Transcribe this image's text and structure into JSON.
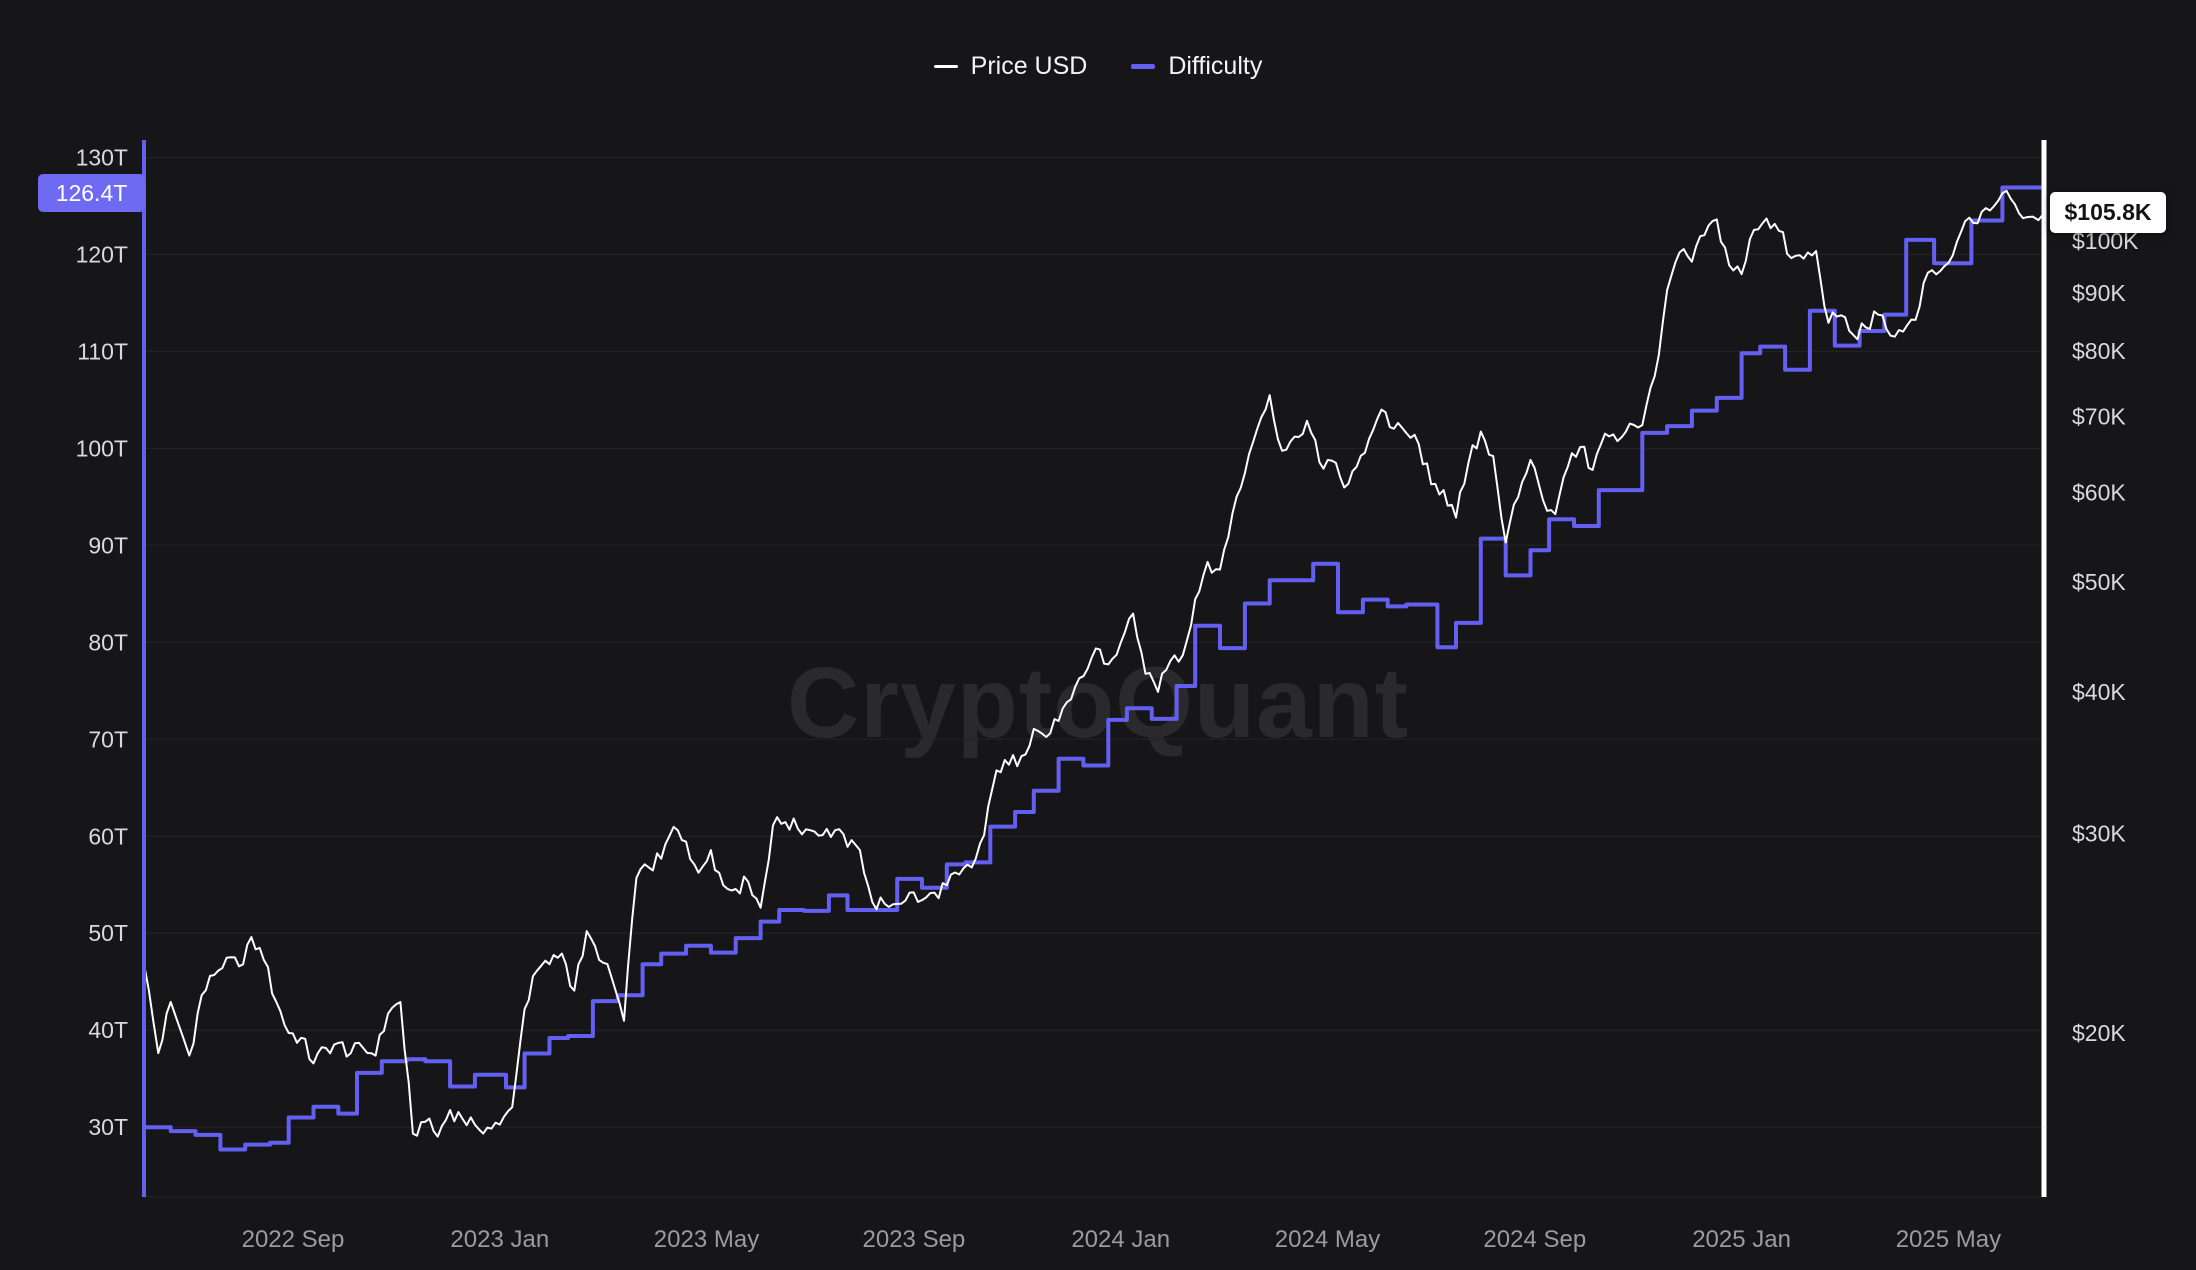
{
  "app": {
    "watermark": "CryptoQuant"
  },
  "legend": {
    "items": [
      {
        "label": "Price USD",
        "color": "#ffffff"
      },
      {
        "label": "Difficulty",
        "color": "#635ff0"
      }
    ]
  },
  "badges": {
    "difficulty": {
      "text": "126.4T",
      "bg": "#6e6bf2",
      "fg": "#ffffff"
    },
    "price": {
      "text": "$105.8K",
      "bg": "#ffffff",
      "fg": "#141417"
    }
  },
  "colors": {
    "background": "#161619",
    "grid": "#242429",
    "axis_left": "#635ff0",
    "axis_right": "#ffffff",
    "tick_label": "#d9d9de",
    "x_label": "#9a9aa2"
  },
  "chart_data": {
    "type": "line",
    "title": "",
    "grid": true,
    "legend_position": "top-center",
    "x_axis": {
      "domain": [
        2022.427,
        2025.487
      ],
      "tick_values": [
        2022.667,
        2023.0,
        2023.333,
        2023.667,
        2024.0,
        2024.333,
        2024.667,
        2025.0,
        2025.333
      ],
      "tick_labels": [
        "2022 Sep",
        "2023 Jan",
        "2023 May",
        "2023 Sep",
        "2024 Jan",
        "2024 May",
        "2024 Sep",
        "2025 Jan",
        "2025 May"
      ]
    },
    "y_left": {
      "name": "Difficulty",
      "unit": "T",
      "scale": "linear",
      "domain": [
        22.8,
        131.8
      ],
      "tick_values": [
        30,
        40,
        50,
        60,
        70,
        80,
        90,
        100,
        110,
        120,
        130
      ],
      "tick_labels": [
        "30T",
        "40T",
        "50T",
        "60T",
        "70T",
        "80T",
        "90T",
        "100T",
        "110T",
        "120T",
        "130T"
      ],
      "current": 126.4,
      "current_label": "126.4T"
    },
    "y_right": {
      "name": "Price USD",
      "unit": "$K",
      "scale": "log",
      "domain_k": [
        14.33,
        122.8
      ],
      "tick_values": [
        20,
        30,
        40,
        50,
        60,
        70,
        80,
        90,
        100
      ],
      "tick_labels": [
        "$20K",
        "$30K",
        "$40K",
        "$50K",
        "$60K",
        "$70K",
        "$80K",
        "$90K",
        "$100K"
      ],
      "current": 105.8,
      "current_label": "$105.8K"
    },
    "series": [
      {
        "name": "Price USD",
        "axis": "right",
        "color": "#ffffff",
        "stroke_width": 2,
        "style": "line",
        "points": [
          [
            2022.427,
            23.0
          ],
          [
            2022.45,
            19.2
          ],
          [
            2022.47,
            21.3
          ],
          [
            2022.5,
            19.1
          ],
          [
            2022.52,
            21.6
          ],
          [
            2022.54,
            22.5
          ],
          [
            2022.56,
            23.3
          ],
          [
            2022.58,
            22.9
          ],
          [
            2022.6,
            24.3
          ],
          [
            2022.62,
            23.2
          ],
          [
            2022.64,
            21.3
          ],
          [
            2022.66,
            20.0
          ],
          [
            2022.68,
            19.8
          ],
          [
            2022.7,
            18.8
          ],
          [
            2022.72,
            19.4
          ],
          [
            2022.74,
            19.6
          ],
          [
            2022.76,
            19.2
          ],
          [
            2022.78,
            19.4
          ],
          [
            2022.8,
            19.1
          ],
          [
            2022.82,
            20.8
          ],
          [
            2022.84,
            21.3
          ],
          [
            2022.86,
            16.3
          ],
          [
            2022.88,
            16.7
          ],
          [
            2022.9,
            16.2
          ],
          [
            2022.92,
            17.1
          ],
          [
            2022.94,
            16.8
          ],
          [
            2022.96,
            16.6
          ],
          [
            2022.98,
            16.5
          ],
          [
            2023.0,
            16.6
          ],
          [
            2023.02,
            17.2
          ],
          [
            2023.04,
            21.0
          ],
          [
            2023.06,
            22.7
          ],
          [
            2023.08,
            23.0
          ],
          [
            2023.1,
            23.5
          ],
          [
            2023.12,
            21.8
          ],
          [
            2023.14,
            24.6
          ],
          [
            2023.16,
            23.2
          ],
          [
            2023.18,
            22.4
          ],
          [
            2023.2,
            20.5
          ],
          [
            2023.22,
            27.4
          ],
          [
            2023.24,
            28.0
          ],
          [
            2023.26,
            28.5
          ],
          [
            2023.28,
            30.4
          ],
          [
            2023.3,
            29.5
          ],
          [
            2023.32,
            27.7
          ],
          [
            2023.34,
            29.0
          ],
          [
            2023.36,
            27.0
          ],
          [
            2023.38,
            26.8
          ],
          [
            2023.4,
            27.2
          ],
          [
            2023.42,
            25.8
          ],
          [
            2023.44,
            30.5
          ],
          [
            2023.46,
            30.7
          ],
          [
            2023.48,
            30.3
          ],
          [
            2023.5,
            30.2
          ],
          [
            2023.52,
            29.9
          ],
          [
            2023.54,
            30.2
          ],
          [
            2023.56,
            29.2
          ],
          [
            2023.58,
            29.0
          ],
          [
            2023.6,
            26.1
          ],
          [
            2023.62,
            26.0
          ],
          [
            2023.64,
            26.0
          ],
          [
            2023.66,
            26.6
          ],
          [
            2023.68,
            26.2
          ],
          [
            2023.7,
            26.6
          ],
          [
            2023.72,
            27.0
          ],
          [
            2023.74,
            27.6
          ],
          [
            2023.76,
            28.0
          ],
          [
            2023.78,
            29.9
          ],
          [
            2023.8,
            34.1
          ],
          [
            2023.82,
            34.5
          ],
          [
            2023.84,
            35.1
          ],
          [
            2023.86,
            37.1
          ],
          [
            2023.88,
            36.5
          ],
          [
            2023.9,
            37.7
          ],
          [
            2023.92,
            39.4
          ],
          [
            2023.94,
            41.3
          ],
          [
            2023.96,
            43.7
          ],
          [
            2023.98,
            42.3
          ],
          [
            2024.0,
            44.2
          ],
          [
            2024.02,
            46.9
          ],
          [
            2024.04,
            41.5
          ],
          [
            2024.06,
            40.0
          ],
          [
            2024.08,
            42.6
          ],
          [
            2024.1,
            43.1
          ],
          [
            2024.12,
            48.3
          ],
          [
            2024.14,
            52.1
          ],
          [
            2024.16,
            51.3
          ],
          [
            2024.18,
            57.5
          ],
          [
            2024.2,
            62.4
          ],
          [
            2024.22,
            68.3
          ],
          [
            2024.24,
            73.1
          ],
          [
            2024.26,
            65.3
          ],
          [
            2024.28,
            67.2
          ],
          [
            2024.3,
            69.4
          ],
          [
            2024.32,
            63.8
          ],
          [
            2024.34,
            64.0
          ],
          [
            2024.36,
            60.6
          ],
          [
            2024.38,
            63.2
          ],
          [
            2024.4,
            66.9
          ],
          [
            2024.42,
            71.0
          ],
          [
            2024.44,
            68.3
          ],
          [
            2024.46,
            67.7
          ],
          [
            2024.48,
            66.2
          ],
          [
            2024.5,
            61.0
          ],
          [
            2024.52,
            60.3
          ],
          [
            2024.54,
            57.0
          ],
          [
            2024.56,
            63.7
          ],
          [
            2024.58,
            67.9
          ],
          [
            2024.6,
            64.6
          ],
          [
            2024.62,
            54.2
          ],
          [
            2024.64,
            59.4
          ],
          [
            2024.66,
            64.1
          ],
          [
            2024.68,
            59.1
          ],
          [
            2024.7,
            57.4
          ],
          [
            2024.72,
            63.2
          ],
          [
            2024.74,
            65.8
          ],
          [
            2024.76,
            62.8
          ],
          [
            2024.78,
            67.6
          ],
          [
            2024.8,
            66.6
          ],
          [
            2024.82,
            69.0
          ],
          [
            2024.84,
            68.8
          ],
          [
            2024.86,
            76.0
          ],
          [
            2024.88,
            90.5
          ],
          [
            2024.9,
            97.7
          ],
          [
            2024.92,
            95.9
          ],
          [
            2024.94,
            101.2
          ],
          [
            2024.96,
            104.5
          ],
          [
            2024.98,
            95.2
          ],
          [
            2025.0,
            93.5
          ],
          [
            2025.02,
            102.3
          ],
          [
            2025.04,
            104.7
          ],
          [
            2025.06,
            102.1
          ],
          [
            2025.08,
            96.6
          ],
          [
            2025.1,
            96.5
          ],
          [
            2025.12,
            98.0
          ],
          [
            2025.14,
            84.7
          ],
          [
            2025.16,
            86.0
          ],
          [
            2025.18,
            82.6
          ],
          [
            2025.2,
            83.9
          ],
          [
            2025.22,
            86.1
          ],
          [
            2025.24,
            82.5
          ],
          [
            2025.26,
            83.2
          ],
          [
            2025.28,
            85.2
          ],
          [
            2025.3,
            93.8
          ],
          [
            2025.32,
            94.1
          ],
          [
            2025.34,
            97.1
          ],
          [
            2025.36,
            104.1
          ],
          [
            2025.38,
            103.7
          ],
          [
            2025.4,
            106.4
          ],
          [
            2025.42,
            110.2
          ],
          [
            2025.44,
            107.8
          ],
          [
            2025.46,
            105.0
          ],
          [
            2025.487,
            105.8
          ]
        ]
      },
      {
        "name": "Difficulty",
        "axis": "left",
        "color": "#635ff0",
        "stroke_width": 4,
        "style": "step",
        "points": [
          [
            2022.427,
            30.0
          ],
          [
            2022.47,
            29.6
          ],
          [
            2022.51,
            29.2
          ],
          [
            2022.55,
            27.7
          ],
          [
            2022.59,
            28.2
          ],
          [
            2022.63,
            28.4
          ],
          [
            2022.66,
            31.0
          ],
          [
            2022.7,
            32.1
          ],
          [
            2022.74,
            31.4
          ],
          [
            2022.77,
            35.6
          ],
          [
            2022.81,
            36.8
          ],
          [
            2022.85,
            37.0
          ],
          [
            2022.88,
            36.8
          ],
          [
            2022.92,
            34.2
          ],
          [
            2022.96,
            35.4
          ],
          [
            2023.01,
            34.1
          ],
          [
            2023.04,
            37.6
          ],
          [
            2023.08,
            39.2
          ],
          [
            2023.11,
            39.4
          ],
          [
            2023.15,
            43.0
          ],
          [
            2023.19,
            43.6
          ],
          [
            2023.23,
            46.8
          ],
          [
            2023.26,
            47.9
          ],
          [
            2023.3,
            48.7
          ],
          [
            2023.34,
            48.0
          ],
          [
            2023.38,
            49.5
          ],
          [
            2023.42,
            51.2
          ],
          [
            2023.45,
            52.4
          ],
          [
            2023.49,
            52.3
          ],
          [
            2023.53,
            53.9
          ],
          [
            2023.56,
            52.4
          ],
          [
            2023.6,
            52.4
          ],
          [
            2023.64,
            55.6
          ],
          [
            2023.68,
            54.7
          ],
          [
            2023.72,
            57.1
          ],
          [
            2023.75,
            57.3
          ],
          [
            2023.79,
            61.0
          ],
          [
            2023.83,
            62.5
          ],
          [
            2023.86,
            64.7
          ],
          [
            2023.9,
            68.0
          ],
          [
            2023.94,
            67.3
          ],
          [
            2023.98,
            72.0
          ],
          [
            2024.01,
            73.2
          ],
          [
            2024.05,
            72.1
          ],
          [
            2024.09,
            75.5
          ],
          [
            2024.12,
            81.7
          ],
          [
            2024.16,
            79.4
          ],
          [
            2024.2,
            84.0
          ],
          [
            2024.24,
            86.4
          ],
          [
            2024.31,
            88.1
          ],
          [
            2024.35,
            83.1
          ],
          [
            2024.39,
            84.4
          ],
          [
            2024.43,
            83.7
          ],
          [
            2024.46,
            83.9
          ],
          [
            2024.51,
            79.5
          ],
          [
            2024.54,
            82.0
          ],
          [
            2024.58,
            90.7
          ],
          [
            2024.62,
            86.9
          ],
          [
            2024.66,
            89.5
          ],
          [
            2024.69,
            92.7
          ],
          [
            2024.73,
            92.0
          ],
          [
            2024.77,
            95.7
          ],
          [
            2024.84,
            101.6
          ],
          [
            2024.88,
            102.3
          ],
          [
            2024.92,
            103.9
          ],
          [
            2024.96,
            105.2
          ],
          [
            2025.0,
            109.8
          ],
          [
            2025.03,
            110.5
          ],
          [
            2025.07,
            108.1
          ],
          [
            2025.11,
            114.2
          ],
          [
            2025.15,
            110.6
          ],
          [
            2025.19,
            112.1
          ],
          [
            2025.23,
            113.8
          ],
          [
            2025.265,
            121.5
          ],
          [
            2025.31,
            119.1
          ],
          [
            2025.37,
            123.5
          ],
          [
            2025.42,
            126.9
          ],
          [
            2025.487,
            126.4
          ]
        ]
      }
    ]
  }
}
